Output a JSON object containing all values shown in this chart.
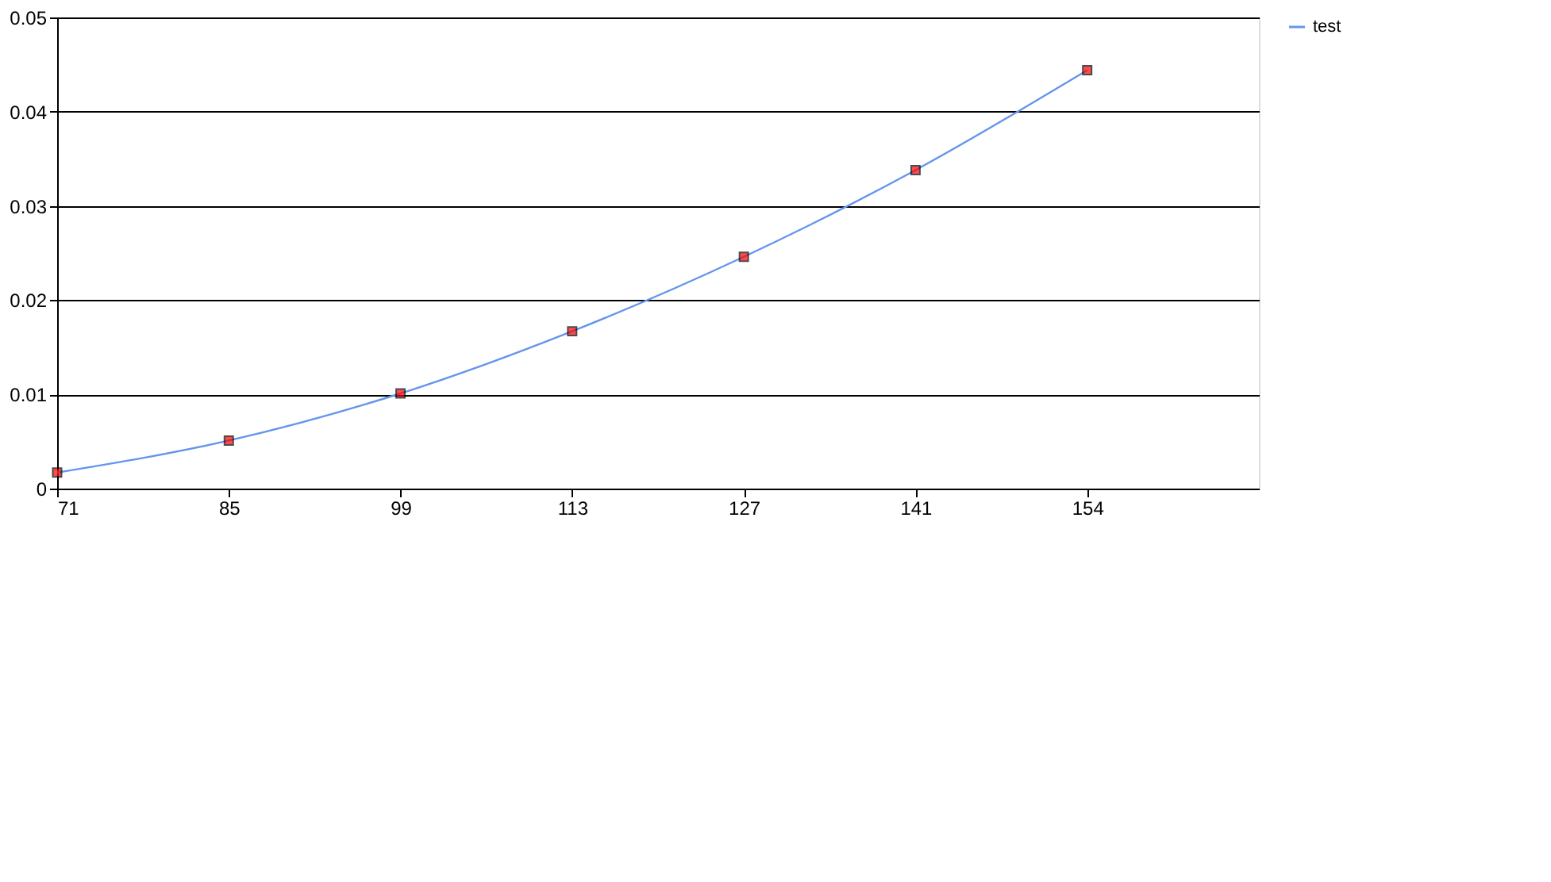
{
  "chart_data": {
    "type": "line",
    "categories": [
      "71",
      "85",
      "99",
      "113",
      "127",
      "141",
      "154"
    ],
    "series": [
      {
        "name": "test",
        "color": "#6495ed",
        "colors": [
          "#ff0000",
          "#ff0000",
          "#ff0000",
          "#ff0000",
          "#ff0000",
          "#ff0000",
          "#ff0000"
        ],
        "values": [
          0.0017,
          0.0051,
          0.0101,
          0.0167,
          0.0246,
          0.0338,
          0.0444
        ]
      }
    ],
    "ylim": [
      0,
      0.05
    ],
    "yticks": [
      0,
      0.01,
      0.02,
      0.03,
      0.04,
      0.05
    ],
    "grid": "y",
    "legend": "top right",
    "marker": "square"
  }
}
